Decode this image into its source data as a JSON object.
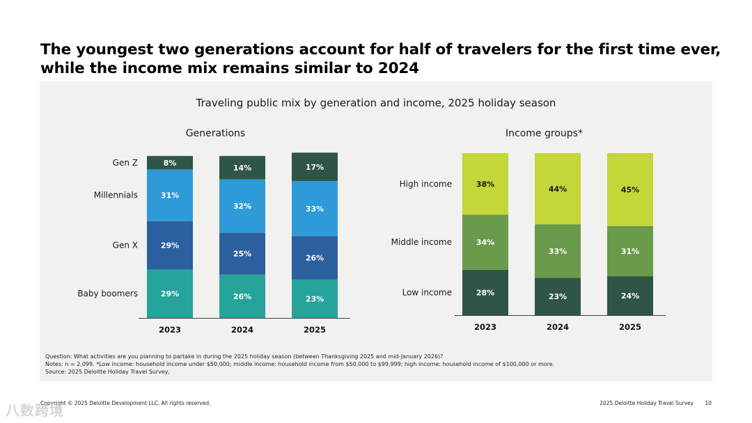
{
  "slide": {
    "title_line1": "The youngest two generations account for half of travelers for the first time ever,",
    "title_line2": "while the income mix remains similar to 2024"
  },
  "panel": {
    "chart_title": "Traveling public mix by generation and income, 2025 holiday season",
    "notes": [
      "Question: What activities are you planning to partake in during the 2025 holiday season (between Thanksgiving 2025 and mid-January 2026)?",
      "Notes: n = 2,099. *Low income: household income under $50,000; middle income: household income from $50,000 to $99,999; high income: household income of $100,000 or more.",
      "Source: 2025 Deloitte Holiday Travel Survey,"
    ]
  },
  "footer": {
    "copyright": "Copyright © 2025 Deloitte Development LLC. All rights reserved.",
    "survey": "2025 Deloitte Holiday Travel Survey",
    "page": "10"
  },
  "watermark": "八数跨境",
  "chart_data": [
    {
      "type": "bar",
      "stacked": true,
      "title": "Generations",
      "categories": [
        "2023",
        "2024",
        "2025"
      ],
      "series": [
        {
          "name": "Baby boomers",
          "values": [
            29,
            26,
            23
          ],
          "color": "#26a39b"
        },
        {
          "name": "Gen X",
          "values": [
            29,
            25,
            26
          ],
          "color": "#2c5f9d"
        },
        {
          "name": "Millennials",
          "values": [
            31,
            32,
            33
          ],
          "color": "#2f9ad8"
        },
        {
          "name": "Gen Z",
          "values": [
            8,
            14,
            17
          ],
          "color": "#2f5544"
        }
      ],
      "value_suffix": "%"
    },
    {
      "type": "bar",
      "stacked": true,
      "title": "Income groups*",
      "categories": [
        "2023",
        "2024",
        "2025"
      ],
      "series": [
        {
          "name": "Low income",
          "values": [
            28,
            23,
            24
          ],
          "color": "#2f5544"
        },
        {
          "name": "Middle income",
          "values": [
            34,
            33,
            31
          ],
          "color": "#6a9a4b"
        },
        {
          "name": "High income",
          "values": [
            38,
            44,
            45
          ],
          "color": "#c3d63a"
        }
      ],
      "value_suffix": "%"
    }
  ]
}
